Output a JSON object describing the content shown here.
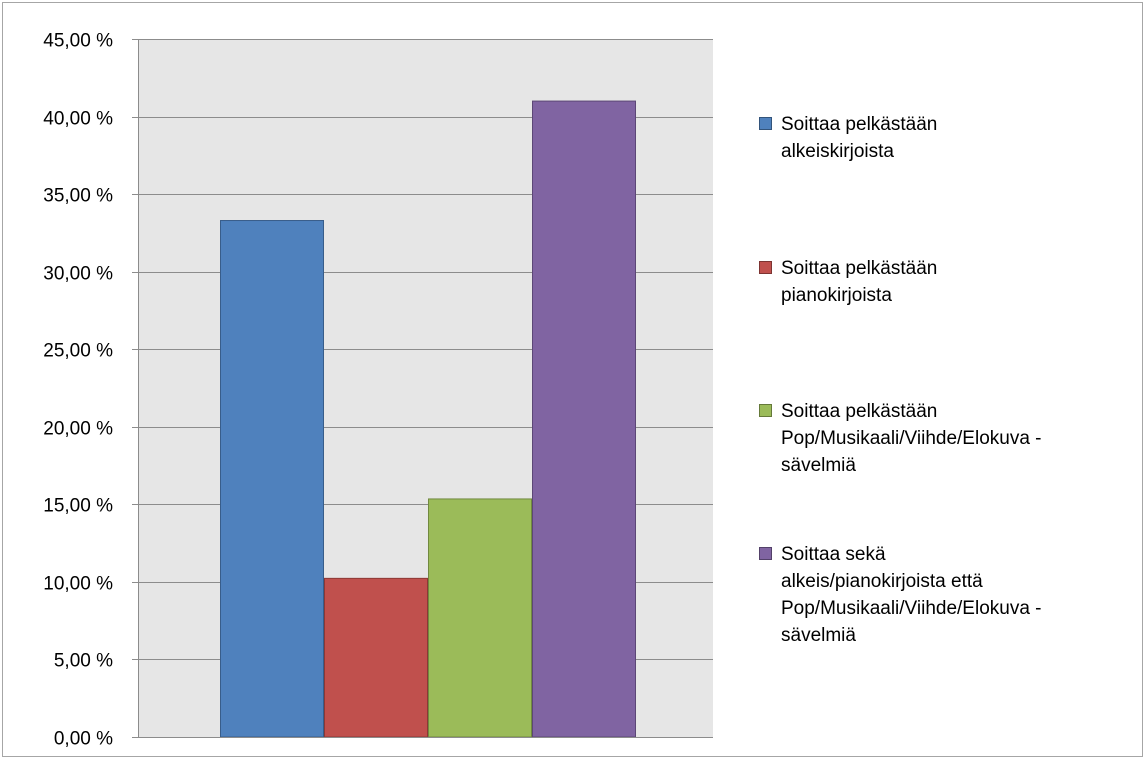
{
  "chart_data": {
    "type": "bar",
    "title": "",
    "xlabel": "",
    "ylabel": "",
    "ylim": [
      0,
      45
    ],
    "y_ticks": [
      "0,00 %",
      "5,00 %",
      "10,00 %",
      "15,00 %",
      "20,00 %",
      "25,00 %",
      "30,00 %",
      "35,00 %",
      "40,00 %",
      "45,00 %"
    ],
    "y_tick_values": [
      0,
      5,
      10,
      15,
      20,
      25,
      30,
      35,
      40,
      45
    ],
    "grid": true,
    "legend_position": "right",
    "plot_background": "#e6e6e6",
    "series": [
      {
        "name": "Soittaa pelkästään alkeiskirjoista",
        "legend_lines": [
          "Soittaa pelkästään",
          "alkeiskirjoista"
        ],
        "value": 33.33,
        "color": "#4f81bd",
        "border": "#385d8a"
      },
      {
        "name": "Soittaa pelkästään pianokirjoista",
        "legend_lines": [
          "Soittaa pelkästään",
          "pianokirjoista"
        ],
        "value": 10.26,
        "color": "#c0504d",
        "border": "#8c3836"
      },
      {
        "name": "Soittaa pelkästään Pop/Musikaali/Viihde/Elokuva -sävelmiä",
        "legend_lines": [
          "Soittaa pelkästään",
          "Pop/Musikaali/Viihde/Elokuva -",
          "sävelmiä"
        ],
        "value": 15.38,
        "color": "#9bbb59",
        "border": "#71893f"
      },
      {
        "name": "Soittaa sekä alkeis/pianokirjoista että Pop/Musikaali/Viihde/Elokuva -sävelmiä",
        "legend_lines": [
          "Soittaa sekä",
          "alkeis/pianokirjoista että",
          "Pop/Musikaali/Viihde/Elokuva -",
          "sävelmiä"
        ],
        "value": 41.03,
        "color": "#8064a2",
        "border": "#5c4776"
      }
    ]
  }
}
